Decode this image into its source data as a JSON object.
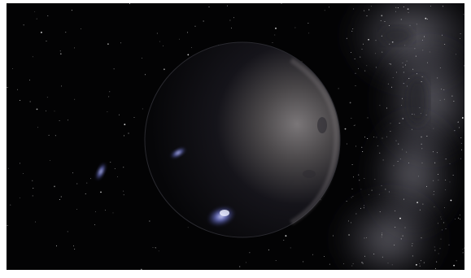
{
  "scene": {
    "subject": "space-scene",
    "elements": [
      "starfield",
      "planet",
      "milky-way",
      "galaxy-small",
      "galaxy-medium",
      "galaxy-large"
    ]
  },
  "colors": {
    "background": "#030304",
    "frame": "#ffffff",
    "planet_lit": "#6e6a6c",
    "planet_dark": "#0a0a0d",
    "milky_way": "#9a98a8",
    "galaxy_glow": "#8c95ff"
  }
}
